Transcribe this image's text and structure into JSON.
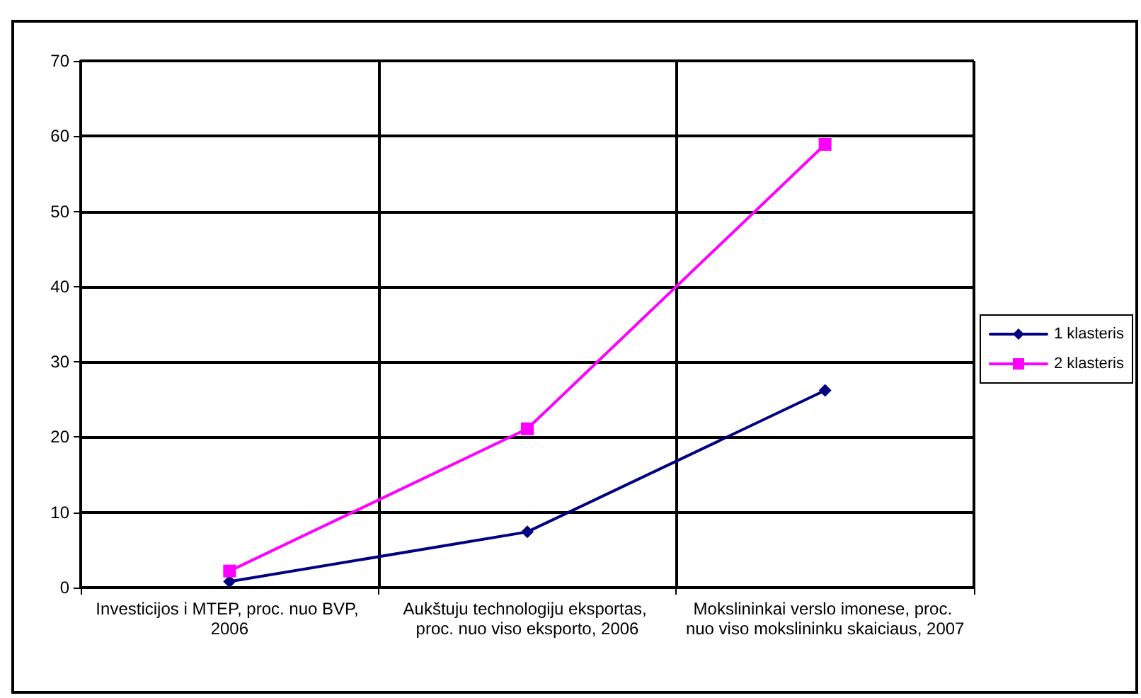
{
  "chart_data": {
    "type": "line",
    "categories": [
      "Investicijos i MTEP, proc. nuo BVP, 2006",
      "Aukštuju technologiju eksportas, proc. nuo viso eksporto, 2006",
      "Mokslininkai verslo imonese, proc. nuo viso mokslininku skaiciaus, 2007"
    ],
    "series": [
      {
        "name": "1 klasteris",
        "color": "#000080",
        "values": [
          0.8,
          7.4,
          26.2
        ],
        "marker": "diamond"
      },
      {
        "name": "2 klasteris",
        "color": "#ff00ff",
        "values": [
          2.2,
          21.1,
          58.9
        ],
        "marker": "square"
      }
    ],
    "ylim": [
      0,
      70
    ],
    "yticks": [
      0,
      10,
      20,
      30,
      40,
      50,
      60,
      70
    ],
    "grid": true,
    "legend": "right",
    "line_style": "solid"
  }
}
